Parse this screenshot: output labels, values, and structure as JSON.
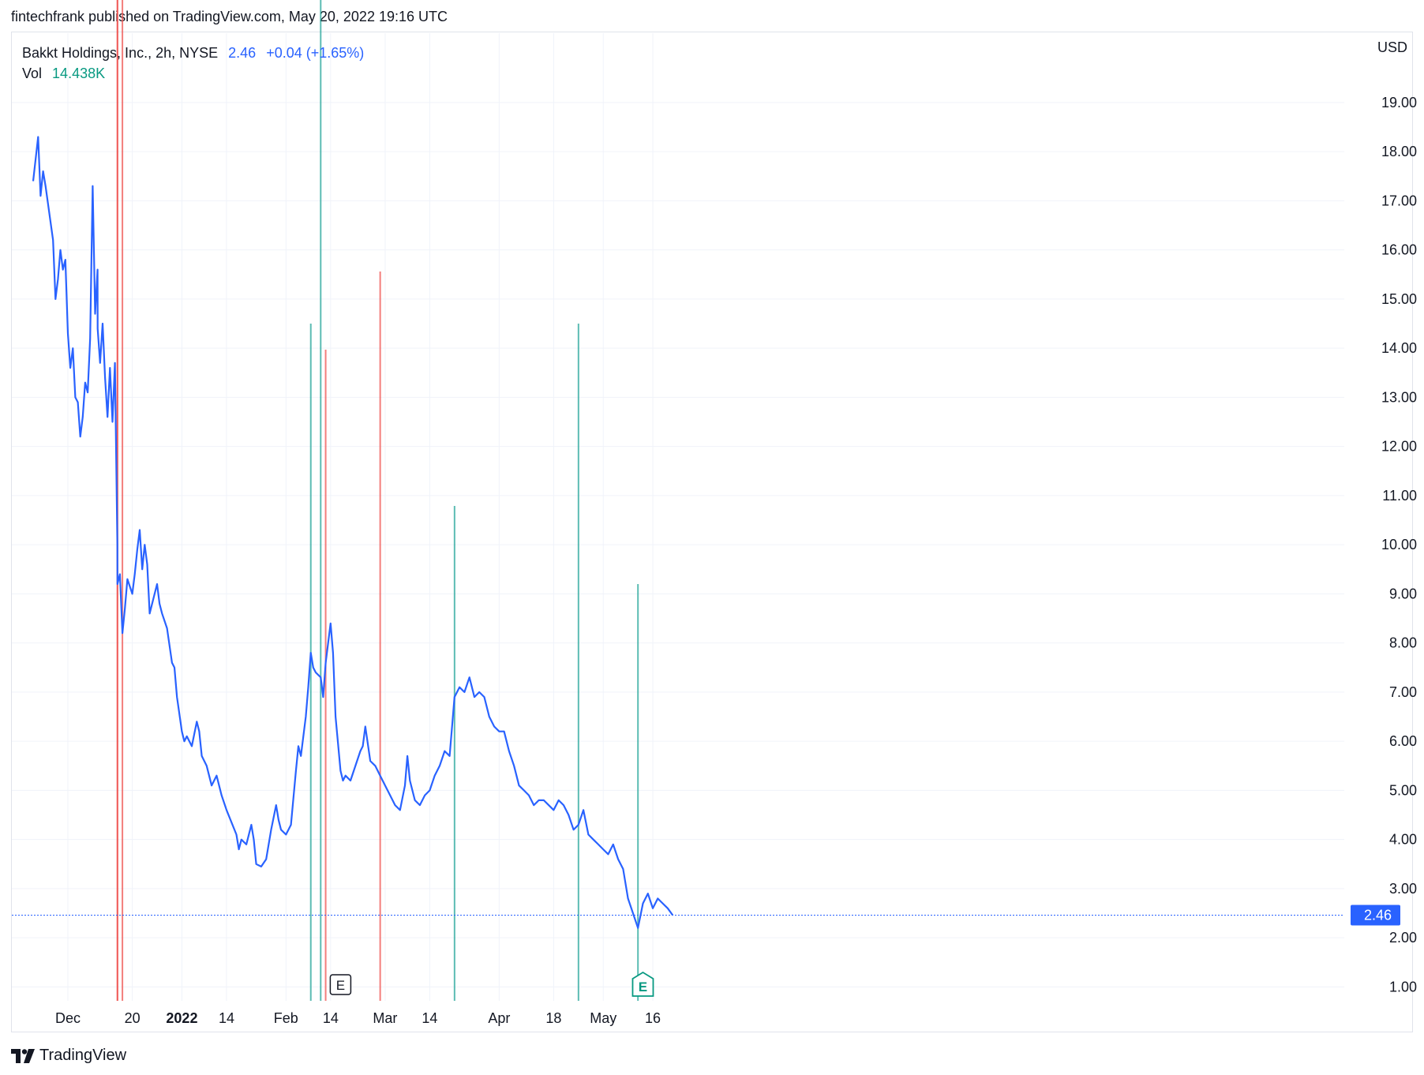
{
  "header": {
    "published_line": "fintechfrank published on TradingView.com, May 20, 2022 19:16 UTC"
  },
  "legend": {
    "symbol": "Bakkt Holdings, Inc., 2h, NYSE",
    "last": "2.46",
    "change": "+0.04 (+1.65%)",
    "vol_label": "Vol",
    "vol_value": "14.438K"
  },
  "footer": {
    "brand": "TradingView"
  },
  "colors": {
    "line": "#2962ff",
    "vol_up": "#26a69a",
    "vol_down": "#ef5350",
    "grid": "#f0f3fa",
    "last_label_bg": "#2962ff"
  },
  "chart_data": {
    "type": "line",
    "title": "Bakkt Holdings, Inc., 2h, NYSE",
    "currency_label": "USD",
    "ylim": [
      0.5,
      19.8
    ],
    "y_ticks": [
      "1.00",
      "2.00",
      "3.00",
      "4.00",
      "5.00",
      "6.00",
      "7.00",
      "8.00",
      "9.00",
      "10.00",
      "11.00",
      "12.00",
      "13.00",
      "14.00",
      "15.00",
      "16.00",
      "17.00",
      "18.00",
      "19.00"
    ],
    "x_ticks": [
      {
        "label": "Dec",
        "x": "2021-12-01"
      },
      {
        "label": "20",
        "x": "2021-12-20"
      },
      {
        "label": "2022",
        "x": "2022-01-03",
        "bold": true
      },
      {
        "label": "14",
        "x": "2022-01-14"
      },
      {
        "label": "Feb",
        "x": "2022-02-01"
      },
      {
        "label": "14",
        "x": "2022-02-14"
      },
      {
        "label": "Mar",
        "x": "2022-03-01"
      },
      {
        "label": "14",
        "x": "2022-03-14"
      },
      {
        "label": "Apr",
        "x": "2022-04-01"
      },
      {
        "label": "18",
        "x": "2022-04-18"
      },
      {
        "label": "May",
        "x": "2022-05-02"
      },
      {
        "label": "16",
        "x": "2022-05-16"
      }
    ],
    "last_value": "2.46",
    "series": [
      {
        "values": [
          [
            "2021-11-22",
            17.4
          ],
          [
            "2021-11-23",
            18.3
          ],
          [
            "2021-11-23",
            17.1
          ],
          [
            "2021-11-24",
            17.6
          ],
          [
            "2021-11-24",
            17.3
          ],
          [
            "2021-11-26",
            16.2
          ],
          [
            "2021-11-26",
            15.0
          ],
          [
            "2021-11-29",
            15.4
          ],
          [
            "2021-11-29",
            16.0
          ],
          [
            "2021-11-30",
            15.6
          ],
          [
            "2021-11-30",
            15.8
          ],
          [
            "2021-12-01",
            14.3
          ],
          [
            "2021-12-01",
            13.6
          ],
          [
            "2021-12-02",
            14.0
          ],
          [
            "2021-12-02",
            13.0
          ],
          [
            "2021-12-03",
            12.9
          ],
          [
            "2021-12-03",
            12.2
          ],
          [
            "2021-12-06",
            12.6
          ],
          [
            "2021-12-06",
            13.3
          ],
          [
            "2021-12-07",
            13.1
          ],
          [
            "2021-12-07",
            14.2
          ],
          [
            "2021-12-08",
            17.3
          ],
          [
            "2021-12-08",
            14.7
          ],
          [
            "2021-12-08",
            15.6
          ],
          [
            "2021-12-09",
            14.4
          ],
          [
            "2021-12-09",
            13.7
          ],
          [
            "2021-12-10",
            14.5
          ],
          [
            "2021-12-10",
            13.4
          ],
          [
            "2021-12-13",
            12.6
          ],
          [
            "2021-12-13",
            13.6
          ],
          [
            "2021-12-14",
            12.5
          ],
          [
            "2021-12-14",
            13.7
          ],
          [
            "2021-12-14",
            10.0
          ],
          [
            "2021-12-15",
            9.2
          ],
          [
            "2021-12-15",
            9.4
          ],
          [
            "2021-12-16",
            8.2
          ],
          [
            "2021-12-16",
            8.7
          ],
          [
            "2021-12-17",
            9.3
          ],
          [
            "2021-12-20",
            9.0
          ],
          [
            "2021-12-20",
            9.4
          ],
          [
            "2021-12-21",
            9.9
          ],
          [
            "2021-12-21",
            10.3
          ],
          [
            "2021-12-22",
            9.5
          ],
          [
            "2021-12-22",
            10.0
          ],
          [
            "2021-12-23",
            9.6
          ],
          [
            "2021-12-23",
            8.6
          ],
          [
            "2021-12-27",
            9.2
          ],
          [
            "2021-12-27",
            8.8
          ],
          [
            "2021-12-28",
            8.6
          ],
          [
            "2021-12-29",
            8.3
          ],
          [
            "2021-12-30",
            7.6
          ],
          [
            "2021-12-30",
            7.5
          ],
          [
            "2021-12-31",
            6.9
          ],
          [
            "2022-01-03",
            6.2
          ],
          [
            "2022-01-03",
            6.0
          ],
          [
            "2022-01-04",
            6.1
          ],
          [
            "2022-01-05",
            5.9
          ],
          [
            "2022-01-06",
            6.4
          ],
          [
            "2022-01-06",
            6.2
          ],
          [
            "2022-01-07",
            5.7
          ],
          [
            "2022-01-10",
            5.5
          ],
          [
            "2022-01-11",
            5.1
          ],
          [
            "2022-01-12",
            5.3
          ],
          [
            "2022-01-13",
            4.9
          ],
          [
            "2022-01-14",
            4.6
          ],
          [
            "2022-01-18",
            4.1
          ],
          [
            "2022-01-18",
            3.8
          ],
          [
            "2022-01-19",
            4.0
          ],
          [
            "2022-01-20",
            3.9
          ],
          [
            "2022-01-21",
            4.3
          ],
          [
            "2022-01-21",
            4.0
          ],
          [
            "2022-01-24",
            3.5
          ],
          [
            "2022-01-25",
            3.45
          ],
          [
            "2022-01-26",
            3.6
          ],
          [
            "2022-01-27",
            4.2
          ],
          [
            "2022-01-28",
            4.7
          ],
          [
            "2022-01-28",
            4.4
          ],
          [
            "2022-01-31",
            4.2
          ],
          [
            "2022-02-01",
            4.1
          ],
          [
            "2022-02-02",
            4.3
          ],
          [
            "2022-02-03",
            5.4
          ],
          [
            "2022-02-03",
            5.9
          ],
          [
            "2022-02-04",
            5.7
          ],
          [
            "2022-02-07",
            6.5
          ],
          [
            "2022-02-07",
            7.1
          ],
          [
            "2022-02-08",
            7.8
          ],
          [
            "2022-02-08",
            7.5
          ],
          [
            "2022-02-09",
            7.4
          ],
          [
            "2022-02-10",
            7.3
          ],
          [
            "2022-02-10",
            6.9
          ],
          [
            "2022-02-11",
            7.6
          ],
          [
            "2022-02-14",
            8.4
          ],
          [
            "2022-02-14",
            7.8
          ],
          [
            "2022-02-15",
            6.5
          ],
          [
            "2022-02-16",
            5.4
          ],
          [
            "2022-02-16",
            5.2
          ],
          [
            "2022-02-17",
            5.3
          ],
          [
            "2022-02-18",
            5.2
          ],
          [
            "2022-02-22",
            5.8
          ],
          [
            "2022-02-22",
            5.9
          ],
          [
            "2022-02-23",
            6.3
          ],
          [
            "2022-02-24",
            5.6
          ],
          [
            "2022-02-25",
            5.5
          ],
          [
            "2022-02-28",
            5.3
          ],
          [
            "2022-03-01",
            5.1
          ],
          [
            "2022-03-02",
            4.9
          ],
          [
            "2022-03-03",
            4.7
          ],
          [
            "2022-03-04",
            4.6
          ],
          [
            "2022-03-07",
            5.1
          ],
          [
            "2022-03-07",
            5.7
          ],
          [
            "2022-03-08",
            5.2
          ],
          [
            "2022-03-09",
            4.8
          ],
          [
            "2022-03-10",
            4.7
          ],
          [
            "2022-03-11",
            4.9
          ],
          [
            "2022-03-14",
            5.0
          ],
          [
            "2022-03-15",
            5.3
          ],
          [
            "2022-03-16",
            5.5
          ],
          [
            "2022-03-17",
            5.8
          ],
          [
            "2022-03-18",
            5.7
          ],
          [
            "2022-03-21",
            6.9
          ],
          [
            "2022-03-22",
            7.1
          ],
          [
            "2022-03-23",
            7.0
          ],
          [
            "2022-03-24",
            7.3
          ],
          [
            "2022-03-25",
            6.9
          ],
          [
            "2022-03-28",
            7.0
          ],
          [
            "2022-03-29",
            6.9
          ],
          [
            "2022-03-30",
            6.5
          ],
          [
            "2022-03-31",
            6.3
          ],
          [
            "2022-04-01",
            6.2
          ],
          [
            "2022-04-04",
            6.2
          ],
          [
            "2022-04-05",
            5.8
          ],
          [
            "2022-04-06",
            5.5
          ],
          [
            "2022-04-07",
            5.1
          ],
          [
            "2022-04-08",
            5.0
          ],
          [
            "2022-04-11",
            4.9
          ],
          [
            "2022-04-12",
            4.7
          ],
          [
            "2022-04-13",
            4.8
          ],
          [
            "2022-04-14",
            4.8
          ],
          [
            "2022-04-18",
            4.6
          ],
          [
            "2022-04-19",
            4.8
          ],
          [
            "2022-04-20",
            4.7
          ],
          [
            "2022-04-21",
            4.5
          ],
          [
            "2022-04-22",
            4.2
          ],
          [
            "2022-04-25",
            4.3
          ],
          [
            "2022-04-26",
            4.6
          ],
          [
            "2022-04-27",
            4.1
          ],
          [
            "2022-04-28",
            4.0
          ],
          [
            "2022-04-29",
            3.9
          ],
          [
            "2022-05-02",
            3.8
          ],
          [
            "2022-05-03",
            3.7
          ],
          [
            "2022-05-04",
            3.9
          ],
          [
            "2022-05-05",
            3.6
          ],
          [
            "2022-05-06",
            3.4
          ],
          [
            "2022-05-09",
            2.8
          ],
          [
            "2022-05-10",
            2.5
          ],
          [
            "2022-05-11",
            2.2
          ],
          [
            "2022-05-12",
            2.7
          ],
          [
            "2022-05-13",
            2.9
          ],
          [
            "2022-05-16",
            2.6
          ],
          [
            "2022-05-17",
            2.8
          ],
          [
            "2022-05-18",
            2.7
          ],
          [
            "2022-05-19",
            2.6
          ],
          [
            "2022-05-20",
            2.46
          ]
        ]
      }
    ],
    "volume": [
      {
        "x": "2021-12-15",
        "v": 5.4,
        "dir": "down"
      },
      {
        "x": "2021-12-15",
        "v": 3.9,
        "dir": "down"
      },
      {
        "x": "2021-12-16",
        "v": 4.5,
        "dir": "down"
      },
      {
        "x": "2022-02-08",
        "v": 2.6,
        "dir": "up"
      },
      {
        "x": "2022-02-10",
        "v": 5.0,
        "dir": "up"
      },
      {
        "x": "2022-02-11",
        "v": 2.5,
        "dir": "down"
      },
      {
        "x": "2022-02-28",
        "v": 2.8,
        "dir": "down"
      },
      {
        "x": "2022-03-21",
        "v": 1.9,
        "dir": "up"
      },
      {
        "x": "2022-04-25",
        "v": 2.6,
        "dir": "up"
      },
      {
        "x": "2022-05-11",
        "v": 1.6,
        "dir": "up"
      }
    ],
    "events": [
      {
        "label": "E",
        "x": "2022-02-16",
        "style": "past"
      },
      {
        "label": "E",
        "x": "2022-05-12",
        "style": "upcoming"
      }
    ]
  }
}
